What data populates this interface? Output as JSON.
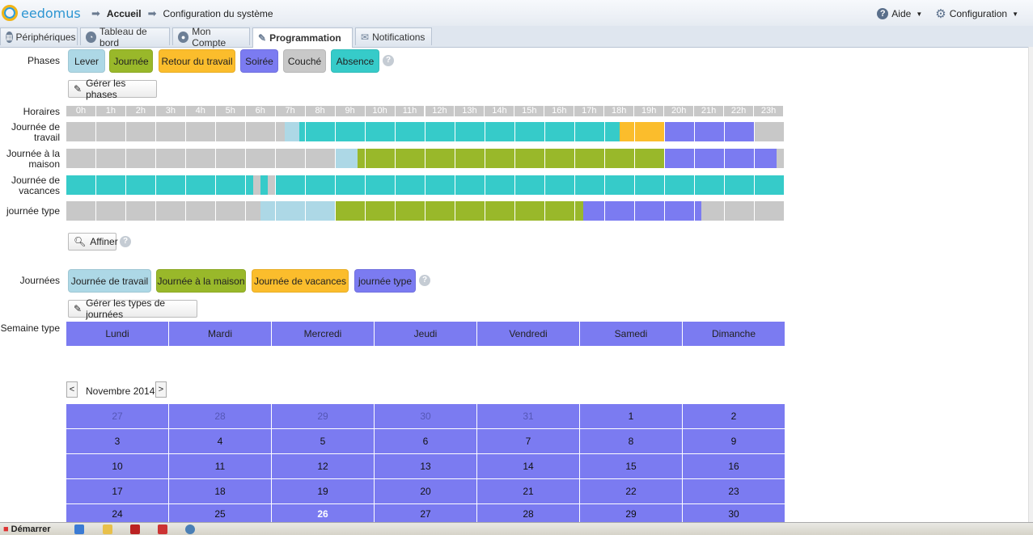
{
  "app": {
    "logo_text": "eedomus"
  },
  "breadcrumbs": [
    "Accueil",
    "Configuration du système"
  ],
  "topright": {
    "help": "Aide",
    "config": "Configuration"
  },
  "tabs": [
    "Périphériques",
    "Tableau de bord",
    "Mon Compte",
    "Programmation",
    "Notifications"
  ],
  "phases": {
    "label": "Phases",
    "items": [
      {
        "name": "Lever",
        "color": "#add8e6"
      },
      {
        "name": "Journée",
        "color": "#99b82a"
      },
      {
        "name": "Retour du travail",
        "color": "#fbbd2c"
      },
      {
        "name": "Soirée",
        "color": "#7b7bf1"
      },
      {
        "name": "Couché",
        "color": "#c8c8c8"
      },
      {
        "name": "Absence",
        "color": "#36cbc9"
      }
    ],
    "manage_label": "Gérer les phases"
  },
  "schedule": {
    "hours_label": "Horaires",
    "hours": [
      "0h",
      "1h",
      "2h",
      "3h",
      "4h",
      "5h",
      "6h",
      "7h",
      "8h",
      "9h",
      "10h",
      "11h",
      "12h",
      "13h",
      "14h",
      "15h",
      "16h",
      "17h",
      "18h",
      "19h",
      "20h",
      "21h",
      "22h",
      "23h"
    ],
    "rows": [
      {
        "label": "Journée de travail",
        "segments": [
          [
            0,
            7.3,
            4
          ],
          [
            7.3,
            7.8,
            0
          ],
          [
            7.8,
            18.5,
            5
          ],
          [
            18.5,
            19,
            2
          ],
          [
            19,
            20,
            2
          ],
          [
            20,
            23,
            3
          ],
          [
            23,
            24,
            4
          ]
        ]
      },
      {
        "label": "Journée à la maison",
        "segments": [
          [
            0,
            9,
            4
          ],
          [
            9,
            9.75,
            0
          ],
          [
            9.75,
            20,
            1
          ],
          [
            20,
            23.75,
            3
          ],
          [
            23.75,
            24,
            4
          ]
        ]
      },
      {
        "label": "Journée de vacances",
        "segments": [
          [
            0,
            6.25,
            5
          ],
          [
            6.25,
            6.5,
            4
          ],
          [
            6.5,
            6.75,
            5
          ],
          [
            6.75,
            7,
            4
          ],
          [
            7,
            24,
            5
          ]
        ]
      },
      {
        "label": "journée type",
        "segments": [
          [
            0,
            6.5,
            4
          ],
          [
            6.5,
            9,
            0
          ],
          [
            9,
            17.3,
            1
          ],
          [
            17.3,
            21.25,
            3
          ],
          [
            21.25,
            24,
            4
          ]
        ]
      }
    ],
    "refine_label": "Affiner"
  },
  "journees": {
    "label": "Journées",
    "items": [
      {
        "name": "Journée de travail",
        "color": "#add8e6"
      },
      {
        "name": "Journée à la maison",
        "color": "#99b82a"
      },
      {
        "name": "Journée de vacances",
        "color": "#fbbd2c"
      },
      {
        "name": "journée type",
        "color": "#7b7bf1"
      }
    ],
    "manage_label": "Gérer les types de journées"
  },
  "week": {
    "label": "Semaine type",
    "days": [
      "Lundi",
      "Mardi",
      "Mercredi",
      "Jeudi",
      "Vendredi",
      "Samedi",
      "Dimanche"
    ]
  },
  "calendar": {
    "prev": "<",
    "next": ">",
    "month": "Novembre 2014",
    "weeks": [
      [
        "27",
        "28",
        "29",
        "30",
        "31",
        "1",
        "2"
      ],
      [
        "3",
        "4",
        "5",
        "6",
        "7",
        "8",
        "9"
      ],
      [
        "10",
        "11",
        "12",
        "13",
        "14",
        "15",
        "16"
      ],
      [
        "17",
        "18",
        "19",
        "20",
        "21",
        "22",
        "23"
      ],
      [
        "24",
        "25",
        "26",
        "27",
        "28",
        "29",
        "30"
      ]
    ],
    "muted_first_row_count": 5,
    "today": "26"
  },
  "taskbar": {
    "start": "Démarrer"
  }
}
